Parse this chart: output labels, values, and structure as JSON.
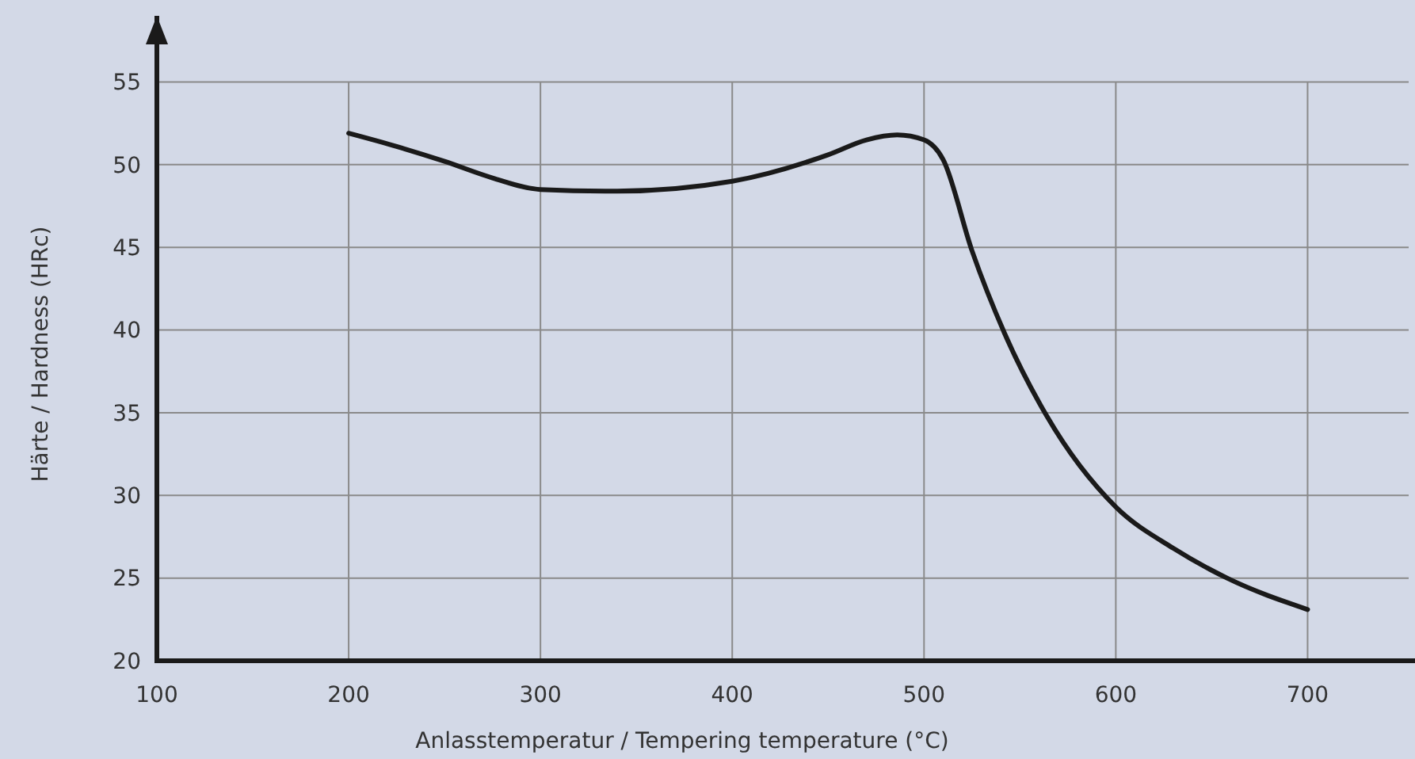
{
  "chart_data": {
    "type": "line",
    "xlabel": "Anlasstemperatur / Tempering temperature (°C)",
    "ylabel": "Härte / Hardness (HRc)",
    "x": [
      200,
      225,
      250,
      275,
      300,
      340,
      400,
      450,
      470,
      486,
      500,
      510,
      525,
      542,
      564,
      600,
      630,
      658,
      700
    ],
    "series": [
      {
        "color": "#1a1a1a",
        "values": [
          51.9,
          51.1,
          50.2,
          49.2,
          48.5,
          48.4,
          49,
          50.6,
          51.5,
          51.8,
          51.5,
          50.3,
          44.8,
          39.8,
          34.8,
          29.3,
          26.8,
          25,
          23.1
        ]
      }
    ],
    "xlim": [
      100,
      756
    ],
    "ylim": [
      20,
      59
    ],
    "xticks": [
      100,
      200,
      300,
      400,
      500,
      600,
      700
    ],
    "yticks": [
      20,
      25,
      30,
      35,
      40,
      45,
      50,
      55
    ],
    "grid": true,
    "marker": "none",
    "line_style": "solid"
  }
}
